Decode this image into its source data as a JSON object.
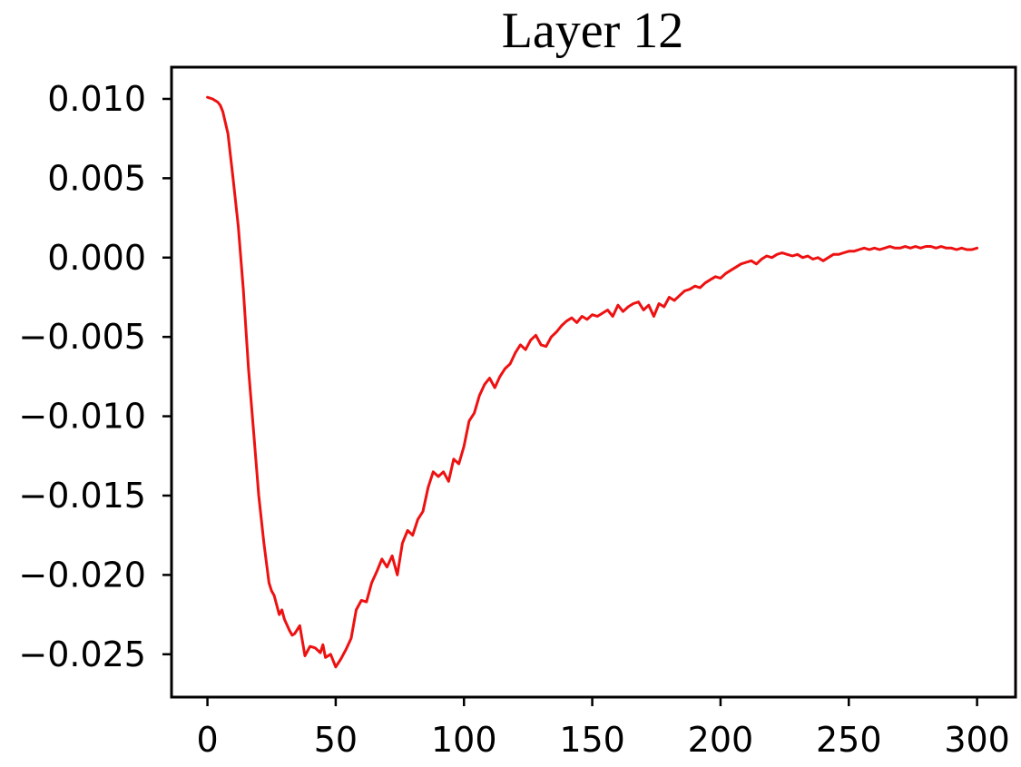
{
  "chart_data": {
    "type": "line",
    "title": "Layer 12",
    "xlabel": "",
    "ylabel": "",
    "xlim": [
      -14,
      315
    ],
    "ylim": [
      -0.0277,
      0.012
    ],
    "x_ticks": [
      0,
      50,
      100,
      150,
      200,
      250,
      300
    ],
    "x_tick_labels": [
      "0",
      "50",
      "100",
      "150",
      "200",
      "250",
      "300"
    ],
    "y_ticks": [
      0.01,
      0.005,
      0.0,
      -0.005,
      -0.01,
      -0.015,
      -0.02,
      -0.025
    ],
    "y_tick_labels": [
      "0.010",
      "0.005",
      "0.000",
      "−0.005",
      "−0.010",
      "−0.015",
      "−0.020",
      "−0.025"
    ],
    "grid": false,
    "series": [
      {
        "color": "#ee1111",
        "x": [
          0,
          2,
          4,
          5,
          6,
          8,
          10,
          12,
          14,
          16,
          18,
          20,
          22,
          24,
          25,
          26,
          28,
          29,
          30,
          32,
          33,
          34,
          36,
          38,
          40,
          42,
          44,
          45,
          46,
          48,
          50,
          52,
          54,
          56,
          58,
          60,
          62,
          64,
          66,
          68,
          70,
          72,
          74,
          76,
          78,
          80,
          82,
          84,
          86,
          88,
          90,
          92,
          94,
          96,
          98,
          100,
          102,
          104,
          106,
          108,
          110,
          112,
          114,
          116,
          118,
          120,
          122,
          124,
          126,
          128,
          130,
          132,
          134,
          136,
          138,
          140,
          142,
          144,
          146,
          148,
          150,
          152,
          154,
          156,
          158,
          160,
          162,
          164,
          166,
          168,
          170,
          172,
          174,
          176,
          178,
          180,
          182,
          184,
          186,
          188,
          190,
          192,
          194,
          196,
          198,
          200,
          202,
          204,
          206,
          208,
          210,
          212,
          214,
          216,
          218,
          220,
          222,
          224,
          226,
          228,
          230,
          232,
          234,
          236,
          238,
          240,
          242,
          244,
          246,
          248,
          250,
          252,
          254,
          256,
          258,
          260,
          262,
          264,
          266,
          268,
          270,
          272,
          274,
          276,
          278,
          280,
          282,
          284,
          286,
          288,
          290,
          292,
          294,
          296,
          298,
          300
        ],
        "values": [
          0.0101,
          0.01,
          0.0098,
          0.0096,
          0.0092,
          0.0078,
          0.005,
          0.002,
          -0.002,
          -0.007,
          -0.011,
          -0.015,
          -0.018,
          -0.0205,
          -0.021,
          -0.0213,
          -0.0225,
          -0.0222,
          -0.0228,
          -0.0235,
          -0.0238,
          -0.0237,
          -0.0232,
          -0.0251,
          -0.0245,
          -0.0246,
          -0.0249,
          -0.0244,
          -0.0252,
          -0.025,
          -0.0258,
          -0.0253,
          -0.0247,
          -0.024,
          -0.0222,
          -0.0216,
          -0.0217,
          -0.0205,
          -0.0198,
          -0.019,
          -0.0195,
          -0.0188,
          -0.02,
          -0.018,
          -0.0172,
          -0.0175,
          -0.0165,
          -0.016,
          -0.0145,
          -0.0135,
          -0.0138,
          -0.0135,
          -0.0141,
          -0.0127,
          -0.013,
          -0.0119,
          -0.0103,
          -0.0098,
          -0.0087,
          -0.008,
          -0.0076,
          -0.0082,
          -0.0075,
          -0.007,
          -0.0067,
          -0.006,
          -0.0055,
          -0.0058,
          -0.0052,
          -0.0049,
          -0.0055,
          -0.0056,
          -0.005,
          -0.0047,
          -0.0043,
          -0.004,
          -0.0038,
          -0.0041,
          -0.0037,
          -0.0039,
          -0.0036,
          -0.0037,
          -0.0035,
          -0.0033,
          -0.0037,
          -0.003,
          -0.0034,
          -0.0031,
          -0.0029,
          -0.0028,
          -0.0033,
          -0.003,
          -0.0037,
          -0.0029,
          -0.0031,
          -0.0025,
          -0.0027,
          -0.0024,
          -0.0021,
          -0.002,
          -0.0018,
          -0.0019,
          -0.0016,
          -0.0014,
          -0.0012,
          -0.0013,
          -0.001,
          -0.0008,
          -0.0006,
          -0.0004,
          -0.0003,
          -0.0002,
          -0.0004,
          -0.0001,
          0.0001,
          0.0,
          0.0002,
          0.0003,
          0.0002,
          0.0001,
          0.0002,
          0.0,
          0.0001,
          -0.0001,
          0.0,
          -0.0002,
          0.0,
          0.0002,
          0.0002,
          0.0003,
          0.0004,
          0.0004,
          0.0005,
          0.0006,
          0.0005,
          0.0006,
          0.0005,
          0.0006,
          0.0007,
          0.0006,
          0.0006,
          0.0007,
          0.0006,
          0.0007,
          0.0006,
          0.0007,
          0.0007,
          0.0006,
          0.0007,
          0.0006,
          0.0006,
          0.0005,
          0.0006,
          0.0005,
          0.0005,
          0.0006
        ]
      }
    ]
  }
}
